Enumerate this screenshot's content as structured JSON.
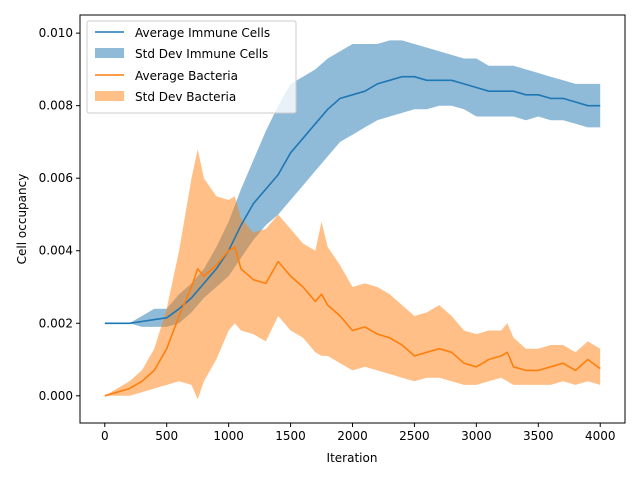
{
  "chart_data": {
    "type": "line",
    "xlabel": "Iteration",
    "ylabel": "Cell occupancy",
    "xlim": [
      -200,
      4200
    ],
    "ylim": [
      -0.00075,
      0.0105
    ],
    "x_ticks": [
      0,
      500,
      1000,
      1500,
      2000,
      2500,
      3000,
      3500,
      4000
    ],
    "y_ticks": [
      0.0,
      0.002,
      0.004,
      0.006,
      0.008,
      0.01
    ],
    "x_tick_labels": [
      "0",
      "500",
      "1000",
      "1500",
      "2000",
      "2500",
      "3000",
      "3500",
      "4000"
    ],
    "y_tick_labels": [
      "0.000",
      "0.002",
      "0.004",
      "0.006",
      "0.008",
      "0.010"
    ],
    "legend_position": "top-left",
    "grid": false,
    "series": [
      {
        "name": "Average Immune Cells",
        "band_name": "Std Dev Immune Cells",
        "color": "#1f77b4",
        "band_color": "#1f77b4",
        "x": [
          0,
          100,
          200,
          300,
          400,
          500,
          600,
          700,
          800,
          900,
          1000,
          1100,
          1200,
          1300,
          1400,
          1500,
          1600,
          1700,
          1800,
          1900,
          2000,
          2100,
          2200,
          2300,
          2400,
          2500,
          2600,
          2700,
          2800,
          2900,
          3000,
          3100,
          3200,
          3300,
          3400,
          3500,
          3600,
          3700,
          3800,
          3900,
          4000
        ],
        "mean": [
          0.002,
          0.002,
          0.002,
          0.00205,
          0.0021,
          0.00215,
          0.0024,
          0.0027,
          0.0031,
          0.0035,
          0.004,
          0.0047,
          0.0053,
          0.0057,
          0.0061,
          0.0067,
          0.0071,
          0.0075,
          0.0079,
          0.0082,
          0.0083,
          0.0084,
          0.0086,
          0.0087,
          0.0088,
          0.0088,
          0.0087,
          0.0087,
          0.0087,
          0.0086,
          0.0085,
          0.0084,
          0.0084,
          0.0084,
          0.0083,
          0.0083,
          0.0082,
          0.0082,
          0.0081,
          0.008,
          0.008
        ],
        "upper": [
          0.002,
          0.002,
          0.002,
          0.0022,
          0.0024,
          0.0024,
          0.0028,
          0.0031,
          0.0035,
          0.0041,
          0.0048,
          0.0057,
          0.0065,
          0.0073,
          0.008,
          0.0086,
          0.0088,
          0.009,
          0.0093,
          0.0095,
          0.0097,
          0.0097,
          0.0097,
          0.0098,
          0.0098,
          0.0097,
          0.0096,
          0.0095,
          0.0094,
          0.0093,
          0.0093,
          0.0091,
          0.0091,
          0.0091,
          0.009,
          0.0089,
          0.0088,
          0.0087,
          0.0086,
          0.0086,
          0.0086
        ],
        "lower": [
          0.002,
          0.002,
          0.002,
          0.0019,
          0.0019,
          0.0019,
          0.002,
          0.0023,
          0.0027,
          0.003,
          0.0033,
          0.0038,
          0.0043,
          0.0047,
          0.005,
          0.0054,
          0.0058,
          0.0062,
          0.0066,
          0.007,
          0.0072,
          0.0074,
          0.0076,
          0.0077,
          0.0078,
          0.0079,
          0.0079,
          0.008,
          0.008,
          0.0079,
          0.0077,
          0.0077,
          0.0077,
          0.0077,
          0.0076,
          0.0077,
          0.0076,
          0.0076,
          0.0075,
          0.0074,
          0.0074
        ]
      },
      {
        "name": "Average Bacteria",
        "band_name": "Std Dev Bacteria",
        "color": "#ff7f0e",
        "band_color": "#ff7f0e",
        "x": [
          0,
          100,
          200,
          300,
          400,
          500,
          600,
          700,
          750,
          800,
          900,
          1000,
          1050,
          1100,
          1200,
          1300,
          1400,
          1500,
          1600,
          1700,
          1750,
          1800,
          1900,
          2000,
          2100,
          2200,
          2300,
          2400,
          2500,
          2600,
          2700,
          2800,
          2900,
          3000,
          3100,
          3200,
          3250,
          3300,
          3400,
          3500,
          3600,
          3700,
          3800,
          3900,
          4000
        ],
        "mean": [
          0.0,
          0.0001,
          0.0002,
          0.0004,
          0.0007,
          0.0013,
          0.0022,
          0.003,
          0.0035,
          0.0033,
          0.0036,
          0.004,
          0.0041,
          0.0035,
          0.0032,
          0.0031,
          0.0037,
          0.0033,
          0.003,
          0.0026,
          0.0028,
          0.0025,
          0.0022,
          0.0018,
          0.0019,
          0.0017,
          0.0016,
          0.0014,
          0.0011,
          0.0012,
          0.0013,
          0.0012,
          0.0009,
          0.0008,
          0.001,
          0.0011,
          0.0012,
          0.0008,
          0.0007,
          0.0007,
          0.0008,
          0.0009,
          0.0007,
          0.001,
          0.00075
        ],
        "upper": [
          0.0,
          0.0002,
          0.0004,
          0.0007,
          0.0013,
          0.0024,
          0.004,
          0.006,
          0.0068,
          0.006,
          0.0055,
          0.0054,
          0.0055,
          0.0049,
          0.0045,
          0.0046,
          0.005,
          0.0046,
          0.0042,
          0.004,
          0.0048,
          0.0041,
          0.0036,
          0.003,
          0.0031,
          0.003,
          0.0028,
          0.0025,
          0.0022,
          0.0023,
          0.0025,
          0.0022,
          0.0018,
          0.0017,
          0.0018,
          0.0018,
          0.002,
          0.0016,
          0.0013,
          0.0013,
          0.0014,
          0.0014,
          0.0012,
          0.0015,
          0.0013
        ],
        "lower": [
          0.0,
          0.0,
          0.0,
          0.0001,
          0.0002,
          0.0003,
          0.0004,
          0.0003,
          -0.0001,
          0.0004,
          0.001,
          0.0018,
          0.002,
          0.0018,
          0.0017,
          0.0015,
          0.0022,
          0.0018,
          0.0016,
          0.0012,
          0.0011,
          0.0011,
          0.0009,
          0.0007,
          0.0008,
          0.0007,
          0.0006,
          0.0005,
          0.0004,
          0.0005,
          0.0005,
          0.0004,
          0.0003,
          0.0003,
          0.0004,
          0.0005,
          0.0004,
          0.0003,
          0.0003,
          0.0003,
          0.0003,
          0.0004,
          0.0003,
          0.0004,
          0.0003
        ]
      }
    ]
  }
}
